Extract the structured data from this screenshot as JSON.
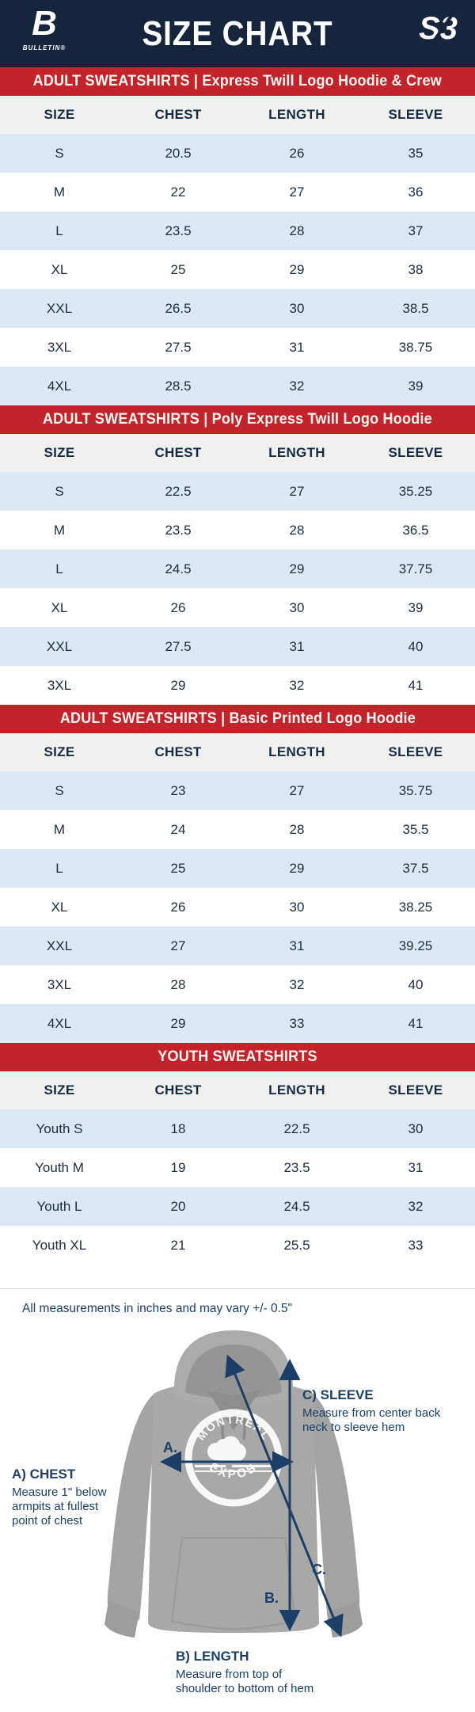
{
  "header": {
    "title": "SIZE CHART",
    "brand_left": {
      "glyph": "B",
      "name": "BULLETIN®"
    },
    "brand_right": {
      "glyph": "S3"
    }
  },
  "columns": [
    "SIZE",
    "CHEST",
    "LENGTH",
    "SLEEVE"
  ],
  "sections": [
    {
      "banner": "ADULT SWEATSHIRTS | Express Twill Logo Hoodie & Crew",
      "rows": [
        [
          "S",
          "20.5",
          "26",
          "35"
        ],
        [
          "M",
          "22",
          "27",
          "36"
        ],
        [
          "L",
          "23.5",
          "28",
          "37"
        ],
        [
          "XL",
          "25",
          "29",
          "38"
        ],
        [
          "XXL",
          "26.5",
          "30",
          "38.5"
        ],
        [
          "3XL",
          "27.5",
          "31",
          "38.75"
        ],
        [
          "4XL",
          "28.5",
          "32",
          "39"
        ]
      ]
    },
    {
      "banner": "ADULT SWEATSHIRTS | Poly Express Twill Logo Hoodie",
      "rows": [
        [
          "S",
          "22.5",
          "27",
          "35.25"
        ],
        [
          "M",
          "23.5",
          "28",
          "36.5"
        ],
        [
          "L",
          "24.5",
          "29",
          "37.75"
        ],
        [
          "XL",
          "26",
          "30",
          "39"
        ],
        [
          "XXL",
          "27.5",
          "31",
          "40"
        ],
        [
          "3XL",
          "29",
          "32",
          "41"
        ]
      ]
    },
    {
      "banner": "ADULT SWEATSHIRTS | Basic Printed Logo Hoodie",
      "rows": [
        [
          "S",
          "23",
          "27",
          "35.75"
        ],
        [
          "M",
          "24",
          "28",
          "35.5"
        ],
        [
          "L",
          "25",
          "29",
          "37.5"
        ],
        [
          "XL",
          "26",
          "30",
          "38.25"
        ],
        [
          "XXL",
          "27",
          "31",
          "39.25"
        ],
        [
          "3XL",
          "28",
          "32",
          "40"
        ],
        [
          "4XL",
          "29",
          "33",
          "41"
        ]
      ]
    },
    {
      "banner": "YOUTH SWEATSHIRTS",
      "rows": [
        [
          "Youth S",
          "18",
          "22.5",
          "30"
        ],
        [
          "Youth M",
          "19",
          "23.5",
          "31"
        ],
        [
          "Youth L",
          "20",
          "24.5",
          "32"
        ],
        [
          "Youth XL",
          "21",
          "25.5",
          "33"
        ]
      ]
    }
  ],
  "note": "All measurements in inches and may vary +/- 0.5\"",
  "diagram": {
    "chest_title": "A) CHEST",
    "chest_desc": "Measure 1\" below armpits at fullest point of chest",
    "length_title": "B) LENGTH",
    "length_desc": "Measure from top of shoulder to bottom of hem",
    "sleeve_title": "C) SLEEVE",
    "sleeve_desc": "Measure from center back neck to sleeve hem",
    "marker_a": "A.",
    "marker_b": "B.",
    "marker_c": "C.",
    "logo_top": "MONTRÉAL",
    "logo_bottom": "EXPOS"
  },
  "colors": {
    "navy": "#16243C",
    "red": "#C2242A",
    "row_blue": "#DCE9F4",
    "header_gray": "#F0F0EE",
    "text_navy": "#1D2C3F",
    "annotation_navy": "#1B3F66"
  }
}
